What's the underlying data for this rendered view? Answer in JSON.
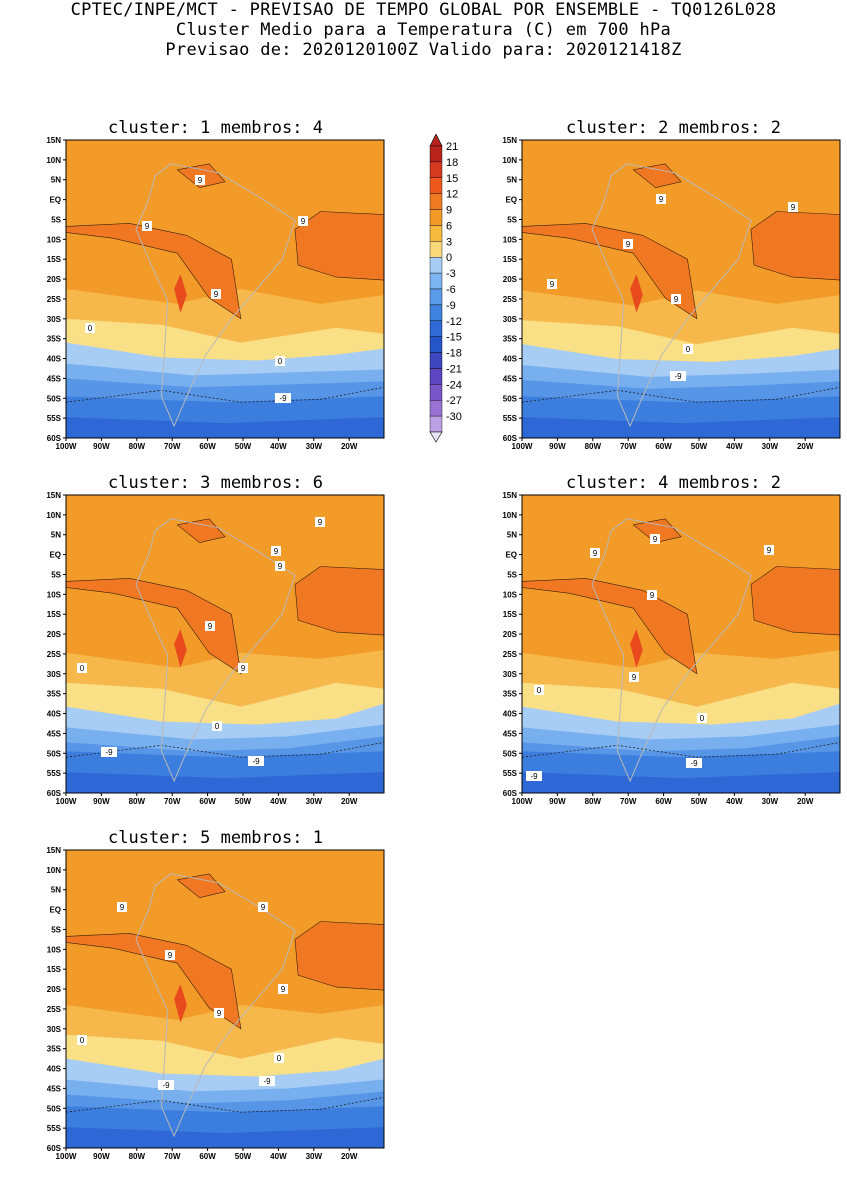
{
  "header": {
    "line1": "CPTEC/INPE/MCT - PREVISAO DE TEMPO GLOBAL POR ENSEMBLE - TQ0126L028",
    "line2": "Cluster Medio para a Temperatura (C) em 700 hPa",
    "line3": "Previsao de: 2020120100Z   Valido para: 2020121418Z"
  },
  "axes": {
    "lat_labels": [
      "15N",
      "10N",
      "5N",
      "EQ",
      "5S",
      "10S",
      "15S",
      "20S",
      "25S",
      "30S",
      "35S",
      "40S",
      "45S",
      "50S",
      "55S",
      "60S"
    ],
    "lon_labels": [
      "100W",
      "90W",
      "80W",
      "70W",
      "60W",
      "50W",
      "40W",
      "30W",
      "20W"
    ]
  },
  "panels": [
    {
      "title": "cluster: 1   membros: 4",
      "contour_labels": [
        {
          "text": "9"
        },
        {
          "text": "9"
        },
        {
          "text": "9"
        },
        {
          "text": "9"
        },
        {
          "text": "0"
        },
        {
          "text": "0"
        },
        {
          "text": "-9"
        }
      ]
    },
    {
      "title": "cluster: 2   membros: 2",
      "contour_labels": [
        {
          "text": "9"
        },
        {
          "text": "9"
        },
        {
          "text": "9"
        },
        {
          "text": "9"
        },
        {
          "text": "9"
        },
        {
          "text": "0"
        },
        {
          "text": "-9"
        }
      ]
    },
    {
      "title": "cluster: 3   membros: 6",
      "contour_labels": [
        {
          "text": "9"
        },
        {
          "text": "9"
        },
        {
          "text": "9"
        },
        {
          "text": "9"
        },
        {
          "text": "9"
        },
        {
          "text": "0"
        },
        {
          "text": "0"
        },
        {
          "text": "-9"
        },
        {
          "text": "-9"
        }
      ]
    },
    {
      "title": "cluster: 4   membros: 2",
      "contour_labels": [
        {
          "text": "9"
        },
        {
          "text": "9"
        },
        {
          "text": "9"
        },
        {
          "text": "9"
        },
        {
          "text": "9"
        },
        {
          "text": "0"
        },
        {
          "text": "0"
        },
        {
          "text": "-9"
        },
        {
          "text": "-9"
        }
      ]
    },
    {
      "title": "cluster: 5   membros: 1",
      "contour_labels": [
        {
          "text": "9"
        },
        {
          "text": "9"
        },
        {
          "text": "9"
        },
        {
          "text": "9"
        },
        {
          "text": "9"
        },
        {
          "text": "0"
        },
        {
          "text": "0"
        },
        {
          "text": "-9"
        },
        {
          "text": "-9"
        }
      ]
    }
  ],
  "colorbar": {
    "labels": [
      "21",
      "18",
      "15",
      "12",
      "9",
      "6",
      "3",
      "0",
      "-3",
      "-6",
      "-9",
      "-12",
      "-15",
      "-18",
      "-21",
      "-24",
      "-27",
      "-30"
    ],
    "colors": [
      "#b8231c",
      "#d53a20",
      "#ee5a1e",
      "#f07a22",
      "#f39b28",
      "#f5ba3e",
      "#f9d97a",
      "#a8cdf5",
      "#7db5f0",
      "#5a9ce8",
      "#3f82e0",
      "#2f6ad5",
      "#2555c6",
      "#3f47c0",
      "#5c46c2",
      "#7a56cb",
      "#9a72d6",
      "#bba0e6"
    ]
  }
}
